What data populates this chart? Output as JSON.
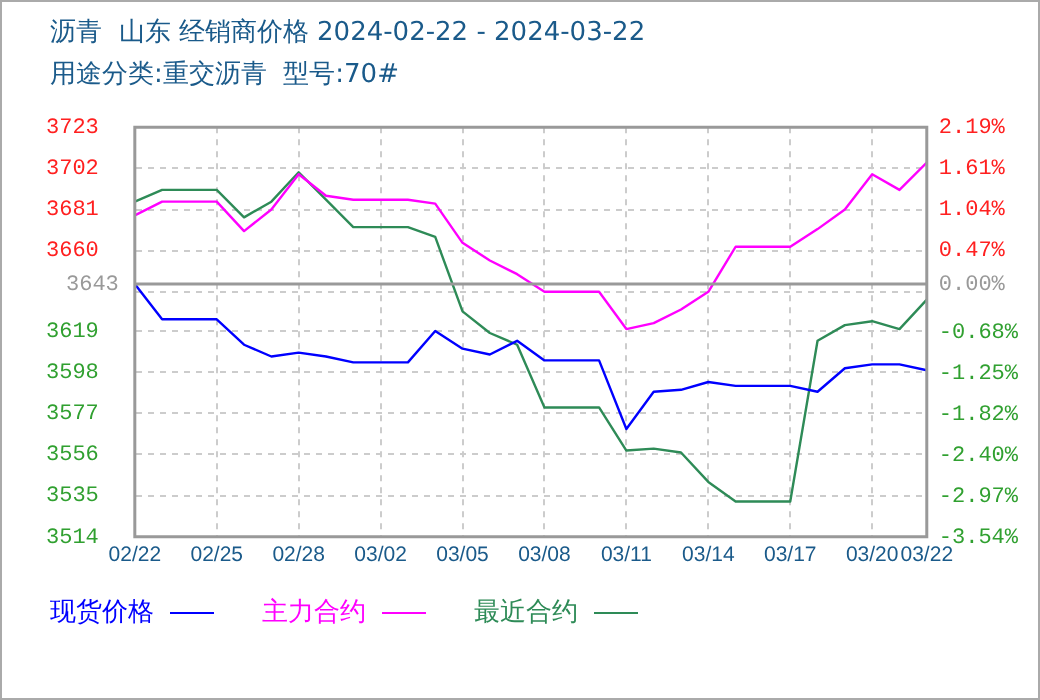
{
  "chart_data": {
    "type": "line",
    "title": "沥青  山东 经销商价格 2024-02-22 - 2024-03-22",
    "subtitle": "用途分类:重交沥青  型号:70#",
    "x": [
      "2024-02-22",
      "2024-02-23",
      "2024-02-24",
      "2024-02-25",
      "2024-02-26",
      "2024-02-27",
      "2024-02-28",
      "2024-02-29",
      "2024-03-01",
      "2024-03-02",
      "2024-03-03",
      "2024-03-04",
      "2024-03-05",
      "2024-03-06",
      "2024-03-07",
      "2024-03-08",
      "2024-03-09",
      "2024-03-10",
      "2024-03-11",
      "2024-03-12",
      "2024-03-13",
      "2024-03-14",
      "2024-03-15",
      "2024-03-16",
      "2024-03-17",
      "2024-03-18",
      "2024-03-19",
      "2024-03-20",
      "2024-03-21",
      "2024-03-22"
    ],
    "series": [
      {
        "name": "现货价格",
        "color": "#0000ff",
        "values": [
          3643,
          3625,
          3625,
          3625,
          3612,
          3606,
          3608,
          3606,
          3603,
          3603,
          3603,
          3619,
          3610,
          3607,
          3614,
          3604,
          3604,
          3604,
          3569,
          3588,
          3589,
          3593,
          3591,
          3591,
          3591,
          3588,
          3600,
          3602,
          3602,
          3599
        ]
      },
      {
        "name": "主力合约",
        "color": "#ff00ff",
        "values": [
          3678,
          3685,
          3685,
          3685,
          3670,
          3681,
          3699,
          3688,
          3686,
          3686,
          3686,
          3684,
          3664,
          3655,
          3648,
          3639,
          3639,
          3639,
          3620,
          3623,
          3630,
          3639,
          3662,
          3662,
          3662,
          3671,
          3681,
          3699,
          3691,
          3705
        ]
      },
      {
        "name": "最近合约",
        "color": "#2e8b57",
        "values": [
          3685,
          3691,
          3691,
          3691,
          3677,
          3685,
          3700,
          3686,
          3672,
          3672,
          3672,
          3667,
          3629,
          3618,
          3612,
          3580,
          3580,
          3580,
          3558,
          3559,
          3557,
          3542,
          3532,
          3532,
          3532,
          3614,
          3622,
          3624,
          3620,
          3635
        ]
      }
    ],
    "xlim": [
      "2024-02-22",
      "2024-03-22"
    ],
    "xticks": [
      {
        "value": "2024-02-22",
        "label": "02/22"
      },
      {
        "value": "2024-02-25",
        "label": "02/25"
      },
      {
        "value": "2024-02-28",
        "label": "02/28"
      },
      {
        "value": "2024-03-02",
        "label": "03/02"
      },
      {
        "value": "2024-03-05",
        "label": "03/05"
      },
      {
        "value": "2024-03-08",
        "label": "03/08"
      },
      {
        "value": "2024-03-11",
        "label": "03/11"
      },
      {
        "value": "2024-03-14",
        "label": "03/14"
      },
      {
        "value": "2024-03-17",
        "label": "03/17"
      },
      {
        "value": "2024-03-20",
        "label": "03/20"
      },
      {
        "value": "2024-03-22",
        "label": "03/22"
      }
    ],
    "ylim": [
      3514,
      3723
    ],
    "yticks": [
      3723,
      3702,
      3681,
      3660,
      {
        "value": 3639,
        "label": null
      },
      3619,
      3598,
      3577,
      3556,
      3535,
      3514
    ],
    "y2lim": [
      -3.54,
      2.19
    ],
    "y2ticks": [
      {
        "value": 2.19,
        "label": "2.19%"
      },
      {
        "value": 1.61,
        "label": "1.61%"
      },
      {
        "value": 1.04,
        "label": "1.04%"
      },
      {
        "value": 0.47,
        "label": "0.47%"
      },
      {
        "value": 0,
        "label": "0.00%"
      },
      {
        "value": -0.68,
        "label": "-0.68%"
      },
      {
        "value": -1.25,
        "label": "-1.25%"
      },
      {
        "value": -1.82,
        "label": "-1.82%"
      },
      {
        "value": -2.4,
        "label": "-2.40%"
      },
      {
        "value": -2.97,
        "label": "-2.97%"
      },
      {
        "value": -3.54,
        "label": "-3.54%"
      }
    ],
    "ref_lines": [
      {
        "axis": "y",
        "value": 3643,
        "label": "3643",
        "color": "#999999"
      }
    ],
    "grid": true,
    "legend": "bottom",
    "marker": "none",
    "line_style": "solid"
  }
}
